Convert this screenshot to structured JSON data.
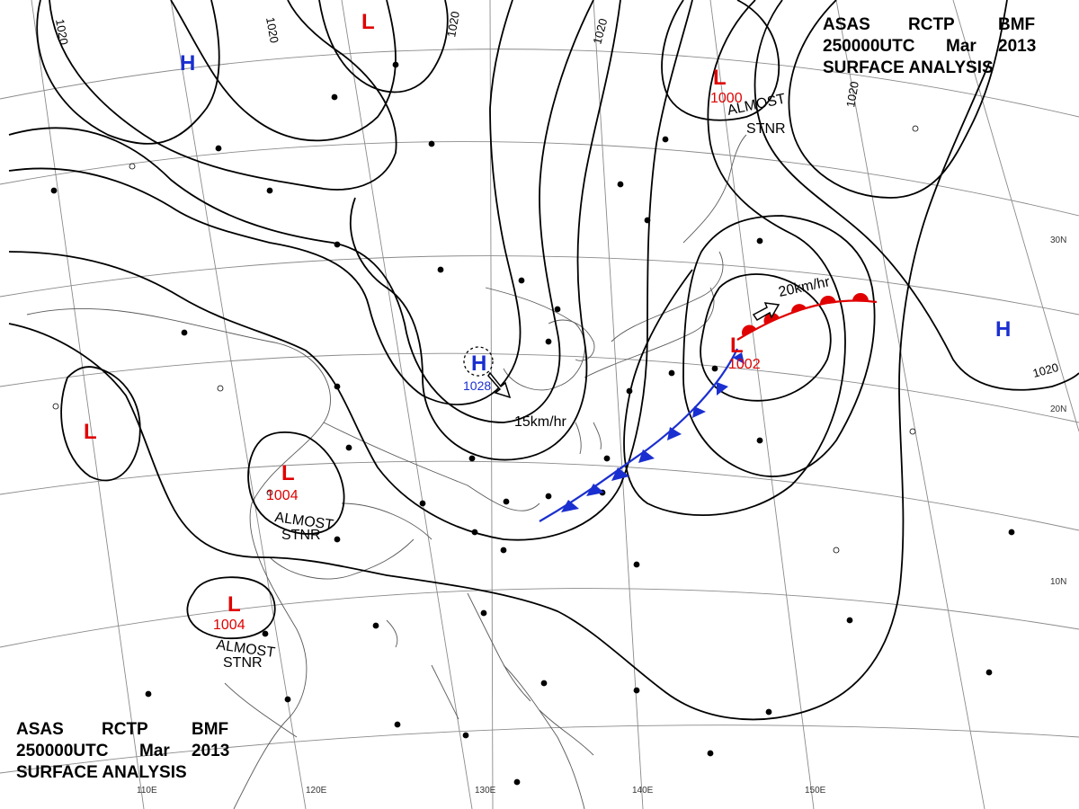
{
  "chart_header": {
    "line1": [
      "ASAS",
      "RCTP",
      "BMF"
    ],
    "line2": [
      "250000UTC",
      "Mar",
      "2013"
    ],
    "line3": "SURFACE ANALYSIS"
  },
  "longitude_labels": [
    "110E",
    "120E",
    "130E",
    "140E",
    "150E"
  ],
  "latitude_labels": [
    "30N",
    "20N",
    "10N"
  ],
  "isobar_labels": [
    "1020",
    "1020",
    "1020",
    "1020",
    "1020",
    "1020"
  ],
  "pressure_centers": [
    {
      "type": "H",
      "value": "",
      "color": "#1a2fd0"
    },
    {
      "type": "H",
      "value": "1028",
      "color": "#1a2fd0"
    },
    {
      "type": "H",
      "value": "",
      "color": "#1a2fd0"
    },
    {
      "type": "L",
      "value": "",
      "color": "#e00000"
    },
    {
      "type": "L",
      "value": "1000",
      "color": "#e00000"
    },
    {
      "type": "L",
      "value": "",
      "color": "#e00000"
    },
    {
      "type": "L",
      "value": "1004",
      "color": "#e00000"
    },
    {
      "type": "L",
      "value": "1004",
      "color": "#e00000"
    },
    {
      "type": "L",
      "value": "1002",
      "color": "#e00000"
    }
  ],
  "annotations": [
    "ALMOST",
    "STNR",
    "ALMOST",
    "STNR",
    "ALMOST",
    "STNR"
  ],
  "motion_labels": [
    "15km/hr",
    "20km/hr"
  ],
  "colors": {
    "warm_front": "#e00000",
    "cold_front": "#1a2fd0",
    "isobar": "#000000",
    "grid": "#888888",
    "coast": "#555555"
  }
}
